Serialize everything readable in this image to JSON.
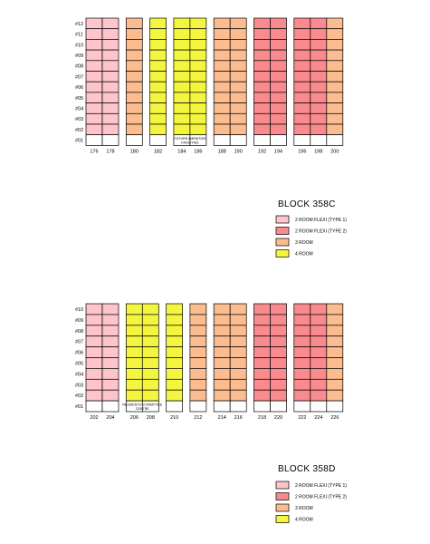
{
  "colors": {
    "type1": "#fdc4cc",
    "type2": "#f98a8e",
    "room3": "#fbbc8f",
    "room4": "#f4f53e",
    "empty": "#ffffff",
    "line": "#000000"
  },
  "legend_items": [
    {
      "key": "type1",
      "label": "2 ROOM FLEXI (TYPE 1)"
    },
    {
      "key": "type2",
      "label": "2 ROOM FLEXI (TYPE 2)"
    },
    {
      "key": "room3",
      "label": "3 ROOM"
    },
    {
      "key": "room4",
      "label": "4 ROOM"
    }
  ],
  "blocks": [
    {
      "title": "BLOCK 358C",
      "levels": [
        "#12",
        "#11",
        "#10",
        "#09",
        "#08",
        "#07",
        "#06",
        "#05",
        "#04",
        "#03",
        "#02",
        "#01"
      ],
      "units": [
        {
          "label": "176",
          "type": "type1",
          "group": 0
        },
        {
          "label": "178",
          "type": "type1",
          "group": 0
        },
        {
          "label": "180",
          "type": "room3",
          "group": 1
        },
        {
          "label": "182",
          "type": "room4",
          "group": 2
        },
        {
          "label": "184",
          "type": "room4",
          "group": 3
        },
        {
          "label": "186",
          "type": "room4",
          "group": 3
        },
        {
          "label": "188",
          "type": "room3",
          "group": 4
        },
        {
          "label": "190",
          "type": "room3",
          "group": 4
        },
        {
          "label": "192",
          "type": "type2",
          "group": 5
        },
        {
          "label": "194",
          "type": "type2",
          "group": 5
        },
        {
          "label": "196",
          "type": "type2",
          "group": 6
        },
        {
          "label": "198",
          "type": "type2",
          "group": 6
        },
        {
          "label": "200",
          "type": "room3",
          "group": 6
        }
      ],
      "ground_note": {
        "lines": [
          "FUTURE AMENITIES",
          "FACILITIES"
        ],
        "units": [
          "184",
          "186"
        ]
      }
    },
    {
      "title": "BLOCK 358D",
      "levels": [
        "#10",
        "#09",
        "#08",
        "#07",
        "#06",
        "#05",
        "#04",
        "#03",
        "#02",
        "#01"
      ],
      "units": [
        {
          "label": "202",
          "type": "type1",
          "group": 0
        },
        {
          "label": "204",
          "type": "type1",
          "group": 0
        },
        {
          "label": "206",
          "type": "room4",
          "group": 1
        },
        {
          "label": "208",
          "type": "room4",
          "group": 1
        },
        {
          "label": "210",
          "type": "room4",
          "group": 2
        },
        {
          "label": "212",
          "type": "room3",
          "group": 3
        },
        {
          "label": "214",
          "type": "room3",
          "group": 4
        },
        {
          "label": "216",
          "type": "room3",
          "group": 4
        },
        {
          "label": "218",
          "type": "type2",
          "group": 5
        },
        {
          "label": "220",
          "type": "type2",
          "group": 5
        },
        {
          "label": "222",
          "type": "type2",
          "group": 6
        },
        {
          "label": "224",
          "type": "type2",
          "group": 6
        },
        {
          "label": "226",
          "type": "room3",
          "group": 6
        }
      ],
      "ground_note": {
        "lines": [
          "RESIDENTS' COMMITTEE",
          "CENTRE"
        ],
        "units": [
          "206",
          "208"
        ]
      }
    }
  ]
}
